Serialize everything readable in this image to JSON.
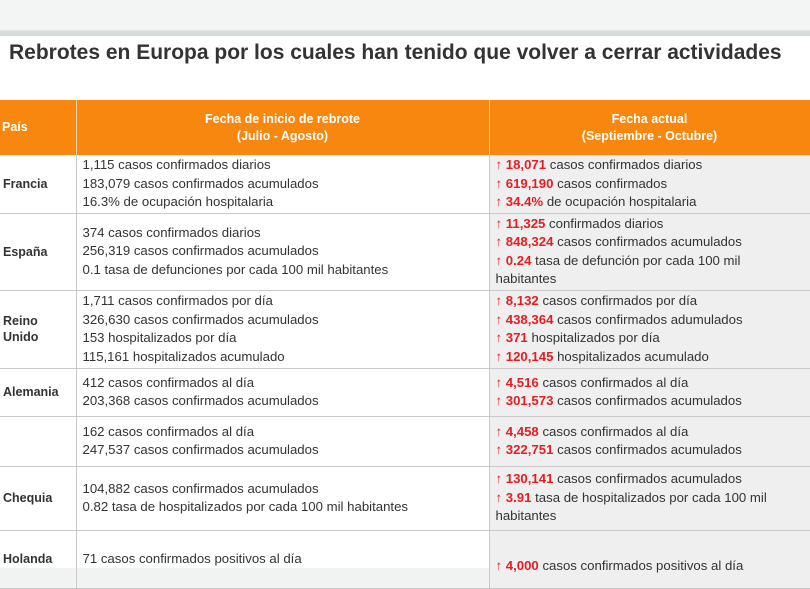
{
  "title": "Rebrotes en Europa por los cuales han tenido que volver a cerrar actividades",
  "headers": {
    "country": "País",
    "start": "Fecha de inicio de rebrote",
    "start_sub": "(Julio - Agosto)",
    "current": "Fecha actual",
    "current_sub": "(Septiembre - Octubre)"
  },
  "rows": [
    {
      "country": "Francia",
      "start": [
        "1,115 casos confirmados diarios",
        "183,079 casos confirmados acumulados",
        "16.3% de ocupación hospitalaria"
      ],
      "current": [
        {
          "num": "18,071",
          "text": " casos confirmados diarios"
        },
        {
          "num": "619,190",
          "text": " casos confirmados"
        },
        {
          "num": "34.4%",
          "text": " de ocupación hospitalaria"
        }
      ]
    },
    {
      "country": "España",
      "start": [
        "374 casos confirmados diarios",
        "256,319 casos confirmados acumulados",
        "0.1 tasa de defunciones por cada 100 mil habitantes"
      ],
      "current": [
        {
          "num": "11,325",
          "text": " confirmados diarios"
        },
        {
          "num": "848,324",
          "text": " casos confirmados acumulados"
        },
        {
          "num": "0.24",
          "text": " tasa de defunción por cada 100 mil habitantes"
        }
      ]
    },
    {
      "country": "Reino Unido",
      "start": [
        "1,711 casos confirmados por día",
        "326,630 casos confirmados acumulados",
        "153 hospitalizados por día",
        "115,161 hospitalizados acumulado"
      ],
      "current": [
        {
          "num": "8,132",
          "text": " casos confirmados por día"
        },
        {
          "num": "438,364",
          "text": " casos confirmados adumulados"
        },
        {
          "num": "371",
          "text": " hospitalizados por día"
        },
        {
          "num": "120,145",
          "text": " hospitalizados acumulado"
        }
      ]
    },
    {
      "country": "Alemania",
      "start": [
        "412 casos confirmados al día",
        "203,368 casos confirmados acumulados"
      ],
      "current": [
        {
          "num": "4,516",
          "text": " casos confirmados al día"
        },
        {
          "num": "301,573",
          "text": " casos confirmados acumulados"
        }
      ]
    },
    {
      "country": "",
      "start": [
        "162 casos confirmados al día",
        "247,537 casos confirmados acumulados"
      ],
      "current": [
        {
          "num": "4,458",
          "text": "  casos confirmados al día"
        },
        {
          "num": "322,751",
          "text": " casos confirmados acumulados"
        }
      ]
    },
    {
      "country": "Chequia",
      "start": [
        "104,882 casos confirmados acumulados",
        "0.82 tasa de hospitalizados por cada 100 mil habitantes"
      ],
      "current": [
        {
          "num": "130,141",
          "text": " casos confirmados acumulados"
        },
        {
          "num": "3.91",
          "text": " tasa de hospitalizados por cada 100 mil habitantes"
        }
      ]
    },
    {
      "country": "Holanda",
      "start": [
        "71 casos confirmados positivos al día"
      ],
      "current": [
        {
          "num": "4,000",
          "text": " casos confirmados positivos al día"
        }
      ]
    }
  ]
}
